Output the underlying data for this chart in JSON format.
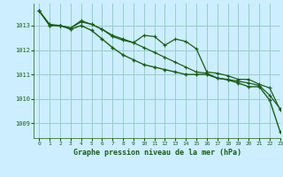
{
  "title": "Graphe pression niveau de la mer (hPa)",
  "background_color": "#cceeff",
  "grid_color": "#99cccc",
  "line_color": "#1a5c1a",
  "xlim": [
    -0.5,
    23
  ],
  "ylim": [
    1008.4,
    1013.9
  ],
  "yticks": [
    1009,
    1010,
    1011,
    1012,
    1013
  ],
  "xticks": [
    0,
    1,
    2,
    3,
    4,
    5,
    6,
    7,
    8,
    9,
    10,
    11,
    12,
    13,
    14,
    15,
    16,
    17,
    18,
    19,
    20,
    21,
    22,
    23
  ],
  "series1": [
    1013.6,
    1013.0,
    1013.0,
    1012.9,
    1013.15,
    1013.05,
    1012.85,
    1012.6,
    1012.45,
    1012.3,
    1012.1,
    1011.9,
    1011.7,
    1011.5,
    1011.3,
    1011.1,
    1011.05,
    1010.85,
    1010.8,
    1010.72,
    1010.65,
    1010.55,
    1010.15,
    1009.6
  ],
  "series2": [
    1013.6,
    1013.05,
    1013.0,
    1012.9,
    1013.2,
    1013.05,
    1012.85,
    1012.55,
    1012.4,
    1012.3,
    1012.6,
    1012.55,
    1012.2,
    1012.45,
    1012.35,
    1012.05,
    1011.1,
    1011.05,
    1010.95,
    1010.8,
    1010.8,
    1010.6,
    1010.45,
    1009.55
  ],
  "series3": [
    1013.6,
    1013.0,
    1013.0,
    1012.85,
    1013.0,
    1012.8,
    1012.45,
    1012.1,
    1011.8,
    1011.6,
    1011.4,
    1011.3,
    1011.2,
    1011.1,
    1011.0,
    1011.0,
    1011.0,
    1010.85,
    1010.78,
    1010.65,
    1010.5,
    1010.5,
    1009.95,
    1008.65
  ]
}
